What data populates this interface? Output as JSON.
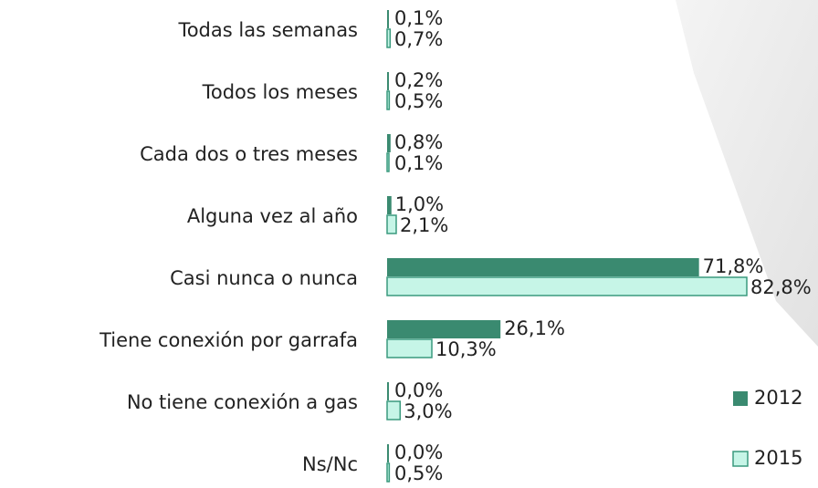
{
  "chart_data": {
    "type": "hbar",
    "categories": [
      "Todas las semanas",
      "Todos los meses",
      "Cada dos o tres meses",
      "Alguna vez al año",
      "Casi nunca o nunca",
      "Tiene conexión por garrafa",
      "No tiene conexión a gas",
      "Ns/Nc"
    ],
    "series": [
      {
        "name": "2012",
        "color": "#3a8a70",
        "values": [
          0.1,
          0.2,
          0.8,
          1.0,
          71.8,
          26.1,
          0.0,
          0.0
        ],
        "value_labels": [
          "0,1%",
          "0,2%",
          "0,8%",
          "1,0%",
          "71,8%",
          "26,1%",
          "0,0%",
          "0,0%"
        ]
      },
      {
        "name": "2015",
        "color": "#c6f5e7",
        "values": [
          0.7,
          0.5,
          0.1,
          2.1,
          82.8,
          10.3,
          3.0,
          0.5
        ],
        "value_labels": [
          "0,7%",
          "0,5%",
          "0,1%",
          "2,1%",
          "82,8%",
          "10,3%",
          "3,0%",
          "0,5%"
        ]
      }
    ],
    "legend": "bottom-right"
  }
}
